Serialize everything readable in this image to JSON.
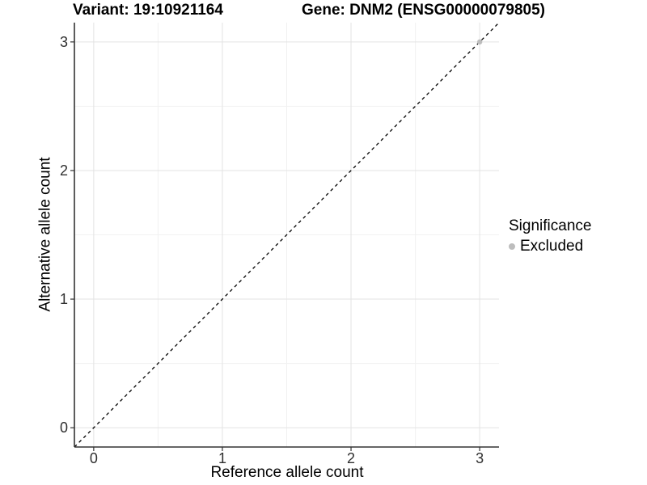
{
  "chart_data": {
    "type": "scatter",
    "title_variant": "Variant: 19:10921164",
    "title_gene": "Gene: DNM2 (ENSG00000079805)",
    "xlabel": "Reference allele count",
    "ylabel": "Alternative allele count",
    "xlim": [
      -0.15,
      3.15
    ],
    "ylim": [
      -0.15,
      3.15
    ],
    "x_ticks": [
      0,
      1,
      2,
      3
    ],
    "y_ticks": [
      0,
      1,
      2,
      3
    ],
    "minor_ticks": [
      0.5,
      1.5,
      2.5
    ],
    "grid": "major and minor gridlines, white panel background",
    "legend": {
      "title": "Significance",
      "position": "right",
      "items": [
        {
          "label": "Excluded",
          "color": "#bdbdbd"
        }
      ]
    },
    "reference_line": {
      "type": "identity (y = x)",
      "style": "dashed",
      "color": "#000000",
      "from": [
        -0.15,
        -0.15
      ],
      "to": [
        3.15,
        3.15
      ]
    },
    "points": [
      {
        "x": 3,
        "y": 3,
        "series": "Excluded",
        "color": "#bdbdbd"
      }
    ],
    "colors": {
      "grid_major": "#e3e3e3",
      "grid_minor": "#f1f1f1",
      "axis_line": "#333333",
      "tick_mark": "#333333",
      "dashed_line": "#000000"
    }
  }
}
